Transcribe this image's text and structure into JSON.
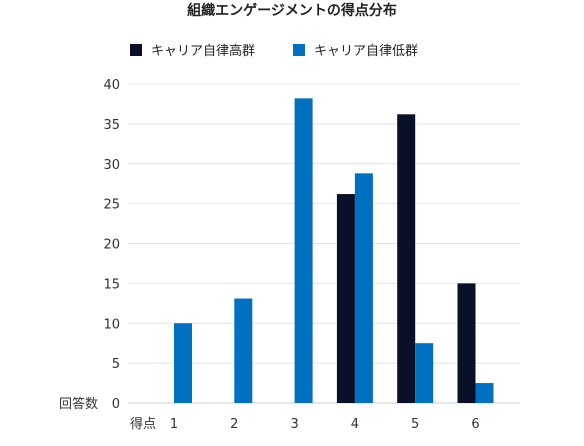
{
  "chart_data": {
    "type": "bar",
    "title": "組織エンゲージメントの得点分布",
    "xlabel": "得点",
    "ylabel": "回答数",
    "categories": [
      "1",
      "2",
      "3",
      "4",
      "5",
      "6"
    ],
    "series": [
      {
        "name": "キャリア自律高群",
        "color": "#0b1029",
        "values": [
          0,
          0,
          0,
          26.2,
          36.2,
          15
        ]
      },
      {
        "name": "キャリア自律低群",
        "color": "#0070c0",
        "values": [
          10,
          13.1,
          38.2,
          28.8,
          7.5,
          2.5
        ]
      }
    ],
    "ylim": [
      0,
      40
    ],
    "yticks": [
      0,
      5,
      10,
      15,
      20,
      25,
      30,
      35,
      40
    ],
    "grid": true,
    "legend": "top"
  }
}
